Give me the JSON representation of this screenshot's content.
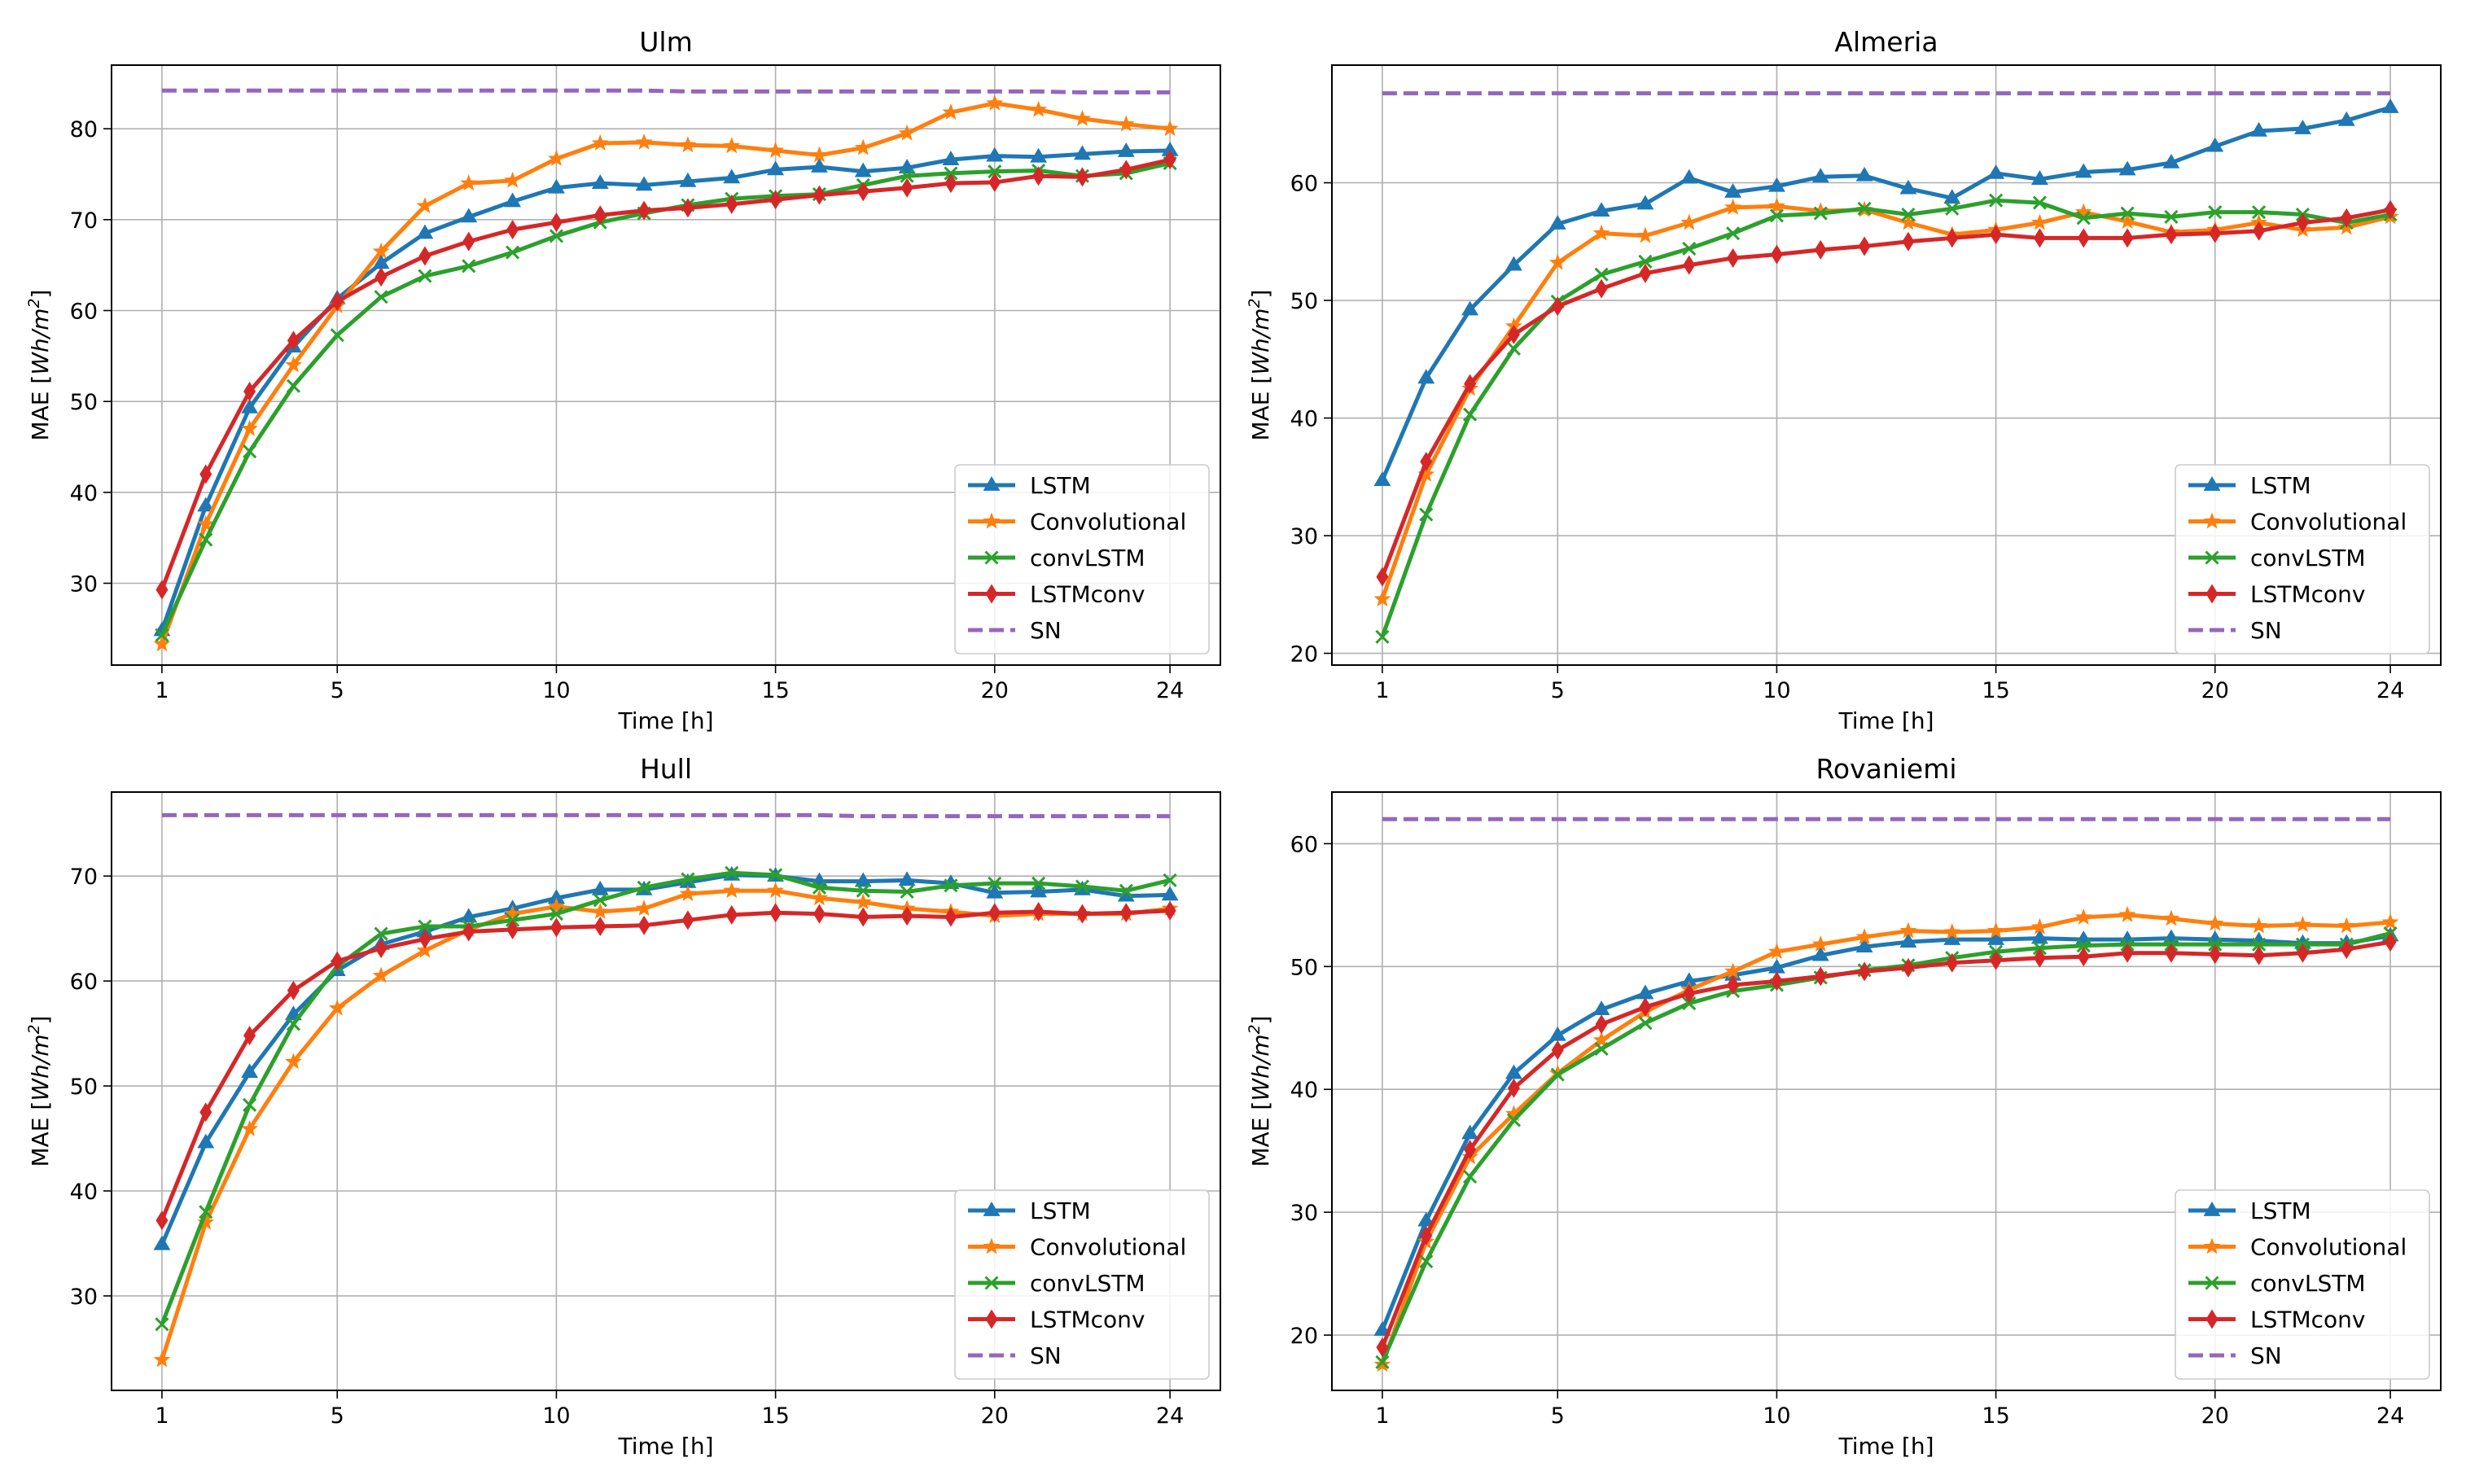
{
  "figure": {
    "xlabel": "Time [h]",
    "ylabel_prefix": "MAE [",
    "ylabel_unit_W": "Wh/m",
    "ylabel_unit_exp": "2",
    "ylabel_suffix": "]",
    "series_colors": {
      "LSTM": "#1f77b4",
      "Convolutional": "#ff7f0e",
      "convLSTM": "#2ca02c",
      "LSTMconv": "#d62728",
      "SN": "#9467bd"
    },
    "series_markers": {
      "LSTM": "triangle-up",
      "Convolutional": "star",
      "convLSTM": "x",
      "LSTMconv": "thin-diamond",
      "SN": "dashed-line"
    }
  },
  "chart_data": [
    {
      "type": "line",
      "title": "Ulm",
      "xlabel": "Time [h]",
      "ylabel": "MAE [Wh/m^2]",
      "xlim": [
        -0.15,
        25.15
      ],
      "ylim": [
        21,
        87
      ],
      "xticks": [
        1,
        5,
        10,
        15,
        20,
        24
      ],
      "yticks": [
        30,
        40,
        50,
        60,
        70,
        80
      ],
      "grid": true,
      "legend": "lower right",
      "x": [
        1,
        2,
        3,
        4,
        5,
        6,
        7,
        8,
        9,
        10,
        11,
        12,
        13,
        14,
        15,
        16,
        17,
        18,
        19,
        20,
        21,
        22,
        23,
        24
      ],
      "series": [
        {
          "name": "LSTM",
          "values": [
            24.8,
            38.5,
            49.3,
            56.0,
            61.3,
            65.2,
            68.5,
            70.3,
            72.0,
            73.5,
            74.0,
            73.8,
            74.2,
            74.6,
            75.5,
            75.8,
            75.3,
            75.7,
            76.6,
            77.0,
            76.9,
            77.2,
            77.5,
            77.6
          ]
        },
        {
          "name": "Convolutional",
          "values": [
            23.3,
            36.5,
            47.0,
            54.0,
            60.5,
            66.5,
            71.5,
            74.0,
            74.3,
            76.7,
            78.4,
            78.5,
            78.2,
            78.1,
            77.6,
            77.1,
            77.9,
            79.5,
            81.8,
            82.8,
            82.1,
            81.1,
            80.5,
            80.0
          ]
        },
        {
          "name": "convLSTM",
          "values": [
            24.3,
            34.8,
            44.5,
            51.7,
            57.3,
            61.5,
            63.8,
            64.9,
            66.4,
            68.2,
            69.7,
            70.7,
            71.6,
            72.3,
            72.6,
            72.8,
            73.8,
            74.8,
            75.1,
            75.3,
            75.4,
            74.8,
            75.1,
            76.2
          ]
        },
        {
          "name": "LSTMconv",
          "values": [
            29.3,
            42.0,
            51.1,
            56.7,
            61.0,
            63.7,
            66.0,
            67.6,
            68.9,
            69.7,
            70.5,
            71.0,
            71.3,
            71.7,
            72.2,
            72.7,
            73.1,
            73.5,
            74.0,
            74.1,
            74.8,
            74.7,
            75.5,
            76.6
          ]
        },
        {
          "name": "SN",
          "values": [
            84.2,
            84.2,
            84.2,
            84.2,
            84.2,
            84.2,
            84.2,
            84.2,
            84.2,
            84.2,
            84.2,
            84.2,
            84.1,
            84.1,
            84.1,
            84.1,
            84.1,
            84.1,
            84.1,
            84.1,
            84.1,
            84.0,
            84.0,
            84.0
          ]
        }
      ]
    },
    {
      "type": "line",
      "title": "Almeria",
      "xlabel": "Time [h]",
      "ylabel": "MAE [Wh/m^2]",
      "xlim": [
        -0.15,
        25.15
      ],
      "ylim": [
        19,
        70
      ],
      "xticks": [
        1,
        5,
        10,
        15,
        20,
        24
      ],
      "yticks": [
        20,
        30,
        40,
        50,
        60
      ],
      "grid": true,
      "legend": "lower right",
      "x": [
        1,
        2,
        3,
        4,
        5,
        6,
        7,
        8,
        9,
        10,
        11,
        12,
        13,
        14,
        15,
        16,
        17,
        18,
        19,
        20,
        21,
        22,
        23,
        24
      ],
      "series": [
        {
          "name": "LSTM",
          "values": [
            34.7,
            43.4,
            49.2,
            53.0,
            56.5,
            57.6,
            58.2,
            60.4,
            59.2,
            59.7,
            60.5,
            60.6,
            59.5,
            58.7,
            60.8,
            60.3,
            60.9,
            61.1,
            61.7,
            63.1,
            64.4,
            64.6,
            65.3,
            66.4
          ]
        },
        {
          "name": "Convolutional",
          "values": [
            24.6,
            35.2,
            42.5,
            47.8,
            53.2,
            55.7,
            55.5,
            56.6,
            57.9,
            58.0,
            57.6,
            57.7,
            56.6,
            55.6,
            56.0,
            56.6,
            57.5,
            56.7,
            55.8,
            56.0,
            56.6,
            56.0,
            56.2,
            57.1
          ]
        },
        {
          "name": "convLSTM",
          "values": [
            21.4,
            31.8,
            40.3,
            45.9,
            49.9,
            52.2,
            53.3,
            54.4,
            55.7,
            57.2,
            57.4,
            57.8,
            57.3,
            57.8,
            58.5,
            58.3,
            57.0,
            57.4,
            57.1,
            57.5,
            57.5,
            57.3,
            56.6,
            57.3
          ]
        },
        {
          "name": "LSTMconv",
          "values": [
            26.5,
            36.3,
            42.9,
            47.1,
            49.5,
            51.0,
            52.3,
            53.0,
            53.6,
            53.9,
            54.3,
            54.6,
            55.0,
            55.3,
            55.6,
            55.3,
            55.3,
            55.3,
            55.6,
            55.7,
            55.9,
            56.6,
            57.0,
            57.7
          ]
        },
        {
          "name": "SN",
          "values": [
            67.6,
            67.6,
            67.6,
            67.6,
            67.6,
            67.6,
            67.6,
            67.6,
            67.6,
            67.6,
            67.6,
            67.6,
            67.6,
            67.6,
            67.6,
            67.6,
            67.6,
            67.6,
            67.6,
            67.6,
            67.6,
            67.6,
            67.6,
            67.6
          ]
        }
      ]
    },
    {
      "type": "line",
      "title": "Hull",
      "xlabel": "Time [h]",
      "ylabel": "MAE [Wh/m^2]",
      "xlim": [
        -0.15,
        25.15
      ],
      "ylim": [
        21,
        78
      ],
      "xticks": [
        1,
        5,
        10,
        15,
        20,
        24
      ],
      "yticks": [
        30,
        40,
        50,
        60,
        70
      ],
      "grid": true,
      "legend": "lower right",
      "x": [
        1,
        2,
        3,
        4,
        5,
        6,
        7,
        8,
        9,
        10,
        11,
        12,
        13,
        14,
        15,
        16,
        17,
        18,
        19,
        20,
        21,
        22,
        23,
        24
      ],
      "series": [
        {
          "name": "LSTM",
          "values": [
            34.9,
            44.6,
            51.3,
            56.8,
            61.0,
            63.5,
            64.7,
            66.1,
            66.9,
            67.9,
            68.7,
            68.7,
            69.4,
            70.1,
            70.0,
            69.5,
            69.5,
            69.6,
            69.3,
            68.4,
            68.5,
            68.7,
            68.1,
            68.2
          ]
        },
        {
          "name": "Convolutional",
          "values": [
            23.9,
            37.0,
            45.9,
            52.3,
            57.4,
            60.5,
            62.9,
            64.9,
            66.4,
            67.1,
            66.6,
            66.9,
            68.3,
            68.6,
            68.6,
            67.9,
            67.5,
            66.9,
            66.6,
            66.2,
            66.4,
            66.4,
            66.4,
            66.9
          ]
        },
        {
          "name": "convLSTM",
          "values": [
            27.3,
            38.0,
            48.2,
            55.9,
            61.4,
            64.5,
            65.2,
            65.2,
            65.8,
            66.4,
            67.7,
            68.9,
            69.7,
            70.3,
            70.1,
            68.9,
            68.6,
            68.5,
            69.1,
            69.3,
            69.3,
            69.0,
            68.6,
            69.6
          ]
        },
        {
          "name": "LSTMconv",
          "values": [
            37.2,
            47.5,
            54.8,
            59.1,
            61.9,
            63.1,
            64.0,
            64.7,
            64.9,
            65.1,
            65.2,
            65.3,
            65.8,
            66.3,
            66.5,
            66.4,
            66.1,
            66.2,
            66.1,
            66.5,
            66.6,
            66.4,
            66.5,
            66.7
          ]
        },
        {
          "name": "SN",
          "values": [
            75.8,
            75.8,
            75.8,
            75.8,
            75.8,
            75.8,
            75.8,
            75.8,
            75.8,
            75.8,
            75.8,
            75.8,
            75.8,
            75.8,
            75.8,
            75.8,
            75.7,
            75.7,
            75.7,
            75.7,
            75.7,
            75.7,
            75.7,
            75.7
          ]
        }
      ]
    },
    {
      "type": "line",
      "title": "Rovaniemi",
      "xlabel": "Time [h]",
      "ylabel": "MAE [Wh/m^2]",
      "xlim": [
        -0.15,
        25.15
      ],
      "ylim": [
        15.5,
        64.2
      ],
      "xticks": [
        1,
        5,
        10,
        15,
        20,
        24
      ],
      "yticks": [
        20,
        30,
        40,
        50,
        60
      ],
      "grid": true,
      "legend": "lower right",
      "x": [
        1,
        2,
        3,
        4,
        5,
        6,
        7,
        8,
        9,
        10,
        11,
        12,
        13,
        14,
        15,
        16,
        17,
        18,
        19,
        20,
        21,
        22,
        23,
        24
      ],
      "series": [
        {
          "name": "LSTM",
          "values": [
            20.4,
            29.3,
            36.4,
            41.3,
            44.4,
            46.5,
            47.8,
            48.8,
            49.3,
            49.9,
            50.9,
            51.6,
            52.0,
            52.2,
            52.2,
            52.3,
            52.2,
            52.2,
            52.3,
            52.2,
            52.1,
            51.9,
            51.9,
            52.5
          ]
        },
        {
          "name": "Convolutional",
          "values": [
            17.6,
            27.6,
            34.5,
            38.0,
            41.3,
            44.0,
            46.3,
            48.1,
            49.6,
            51.2,
            51.8,
            52.4,
            52.9,
            52.8,
            52.9,
            53.2,
            54.0,
            54.2,
            53.9,
            53.5,
            53.3,
            53.4,
            53.3,
            53.6
          ]
        },
        {
          "name": "convLSTM",
          "values": [
            17.8,
            26.0,
            32.9,
            37.5,
            41.2,
            43.3,
            45.4,
            47.0,
            48.0,
            48.5,
            49.1,
            49.7,
            50.1,
            50.7,
            51.2,
            51.5,
            51.7,
            51.8,
            51.8,
            51.8,
            51.8,
            51.8,
            51.8,
            52.7
          ]
        },
        {
          "name": "LSTMconv",
          "values": [
            19.0,
            28.1,
            35.1,
            40.1,
            43.2,
            45.3,
            46.7,
            47.8,
            48.5,
            48.8,
            49.2,
            49.6,
            49.9,
            50.3,
            50.5,
            50.7,
            50.8,
            51.1,
            51.1,
            51.0,
            50.9,
            51.1,
            51.4,
            52.0
          ]
        },
        {
          "name": "SN",
          "values": [
            62.0,
            62.0,
            62.0,
            62.0,
            62.0,
            62.0,
            62.0,
            62.0,
            62.0,
            62.0,
            62.0,
            62.0,
            62.0,
            62.0,
            62.0,
            62.0,
            62.0,
            62.0,
            62.0,
            62.0,
            62.0,
            62.0,
            62.0,
            62.0
          ]
        }
      ]
    }
  ]
}
